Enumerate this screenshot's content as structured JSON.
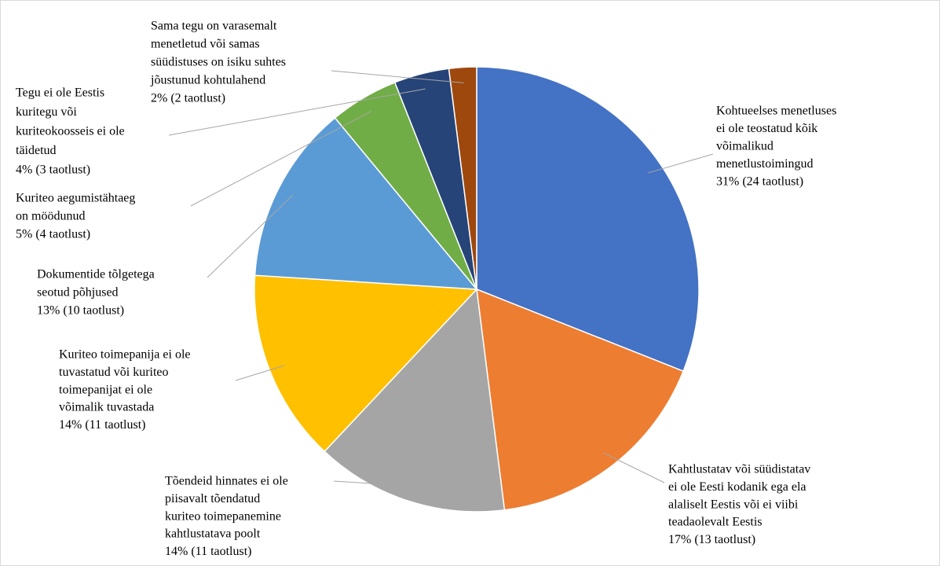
{
  "chart_data": {
    "type": "pie",
    "categories": [
      [
        "Kohtueelses menetluses",
        "ei ole teostatud kõik",
        "võimalikud",
        "menetlustoimingud"
      ],
      [
        "Kahtlustatav või süüdistatav",
        "ei ole Eesti kodanik ega ela",
        "alaliselt Eestis või ei viibi",
        "teadaolevalt Eestis"
      ],
      [
        "Tõendeid hinnates ei ole",
        "piisavalt tõendatud",
        "kuriteo toimepanemine",
        "kahtlustatava poolt"
      ],
      [
        "Kuriteo toimepanija ei ole",
        "tuvastatud või kuriteo",
        "toimepanijat ei ole",
        "võimalik tuvastada"
      ],
      [
        "Dokumentide tõlgetega",
        "seotud põhjused"
      ],
      [
        "Kuriteo aegumistähtaeg",
        "on möödunud"
      ],
      [
        "Tegu ei ole Eestis",
        "kuritegu või",
        "kuriteokoosseis ei ole",
        "täidetud"
      ],
      [
        "Sama tegu on varasemalt",
        "menetletud või samas",
        "süüdistuses on isiku suhtes",
        "jõustunud kohtulahend"
      ]
    ],
    "values": [
      31,
      17,
      14,
      14,
      13,
      5,
      4,
      2
    ],
    "value_labels": [
      "31% (24 taotlust)",
      "17% (13 taotlust)",
      "14% (11 taotlust)",
      "14% (11 taotlust)",
      "13% (10 taotlust)",
      "5% (4 taotlust)",
      "4% (3 taotlust)",
      "2% (2 taotlust)"
    ],
    "colors": [
      "#4472c4",
      "#ed7d31",
      "#a5a5a5",
      "#ffc000",
      "#5b9bd5",
      "#70ad47",
      "#264478",
      "#9e480e"
    ]
  }
}
